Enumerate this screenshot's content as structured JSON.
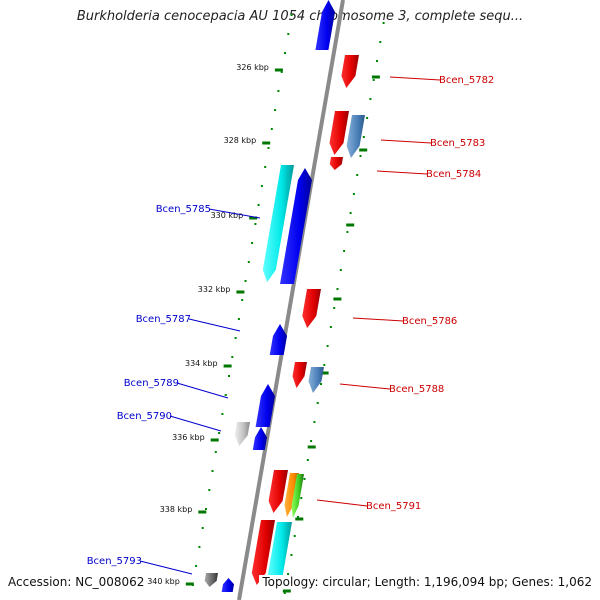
{
  "title": "Burkholderia cenocepacia AU 1054 chromosome 3, complete sequ...",
  "accession": "Accession: NC_008062",
  "topology": "Topology: circular; Length: 1,196,094 bp; Genes: 1,062",
  "colors": {
    "forward_label": "#0000cc",
    "reverse_label": "#cc0000",
    "backbone": "#8a8a8a",
    "tick": "#007700"
  },
  "ticks": [
    {
      "label": "326 kbp"
    },
    {
      "label": "328 kbp"
    },
    {
      "label": "330 kbp"
    },
    {
      "label": "332 kbp"
    },
    {
      "label": "334 kbp"
    },
    {
      "label": "336 kbp"
    },
    {
      "label": "338 kbp"
    },
    {
      "label": "340 kbp"
    }
  ],
  "gene_labels": [
    {
      "text": "Bcen_5782",
      "strand": "reverse"
    },
    {
      "text": "Bcen_5783",
      "strand": "reverse"
    },
    {
      "text": "Bcen_5784",
      "strand": "reverse"
    },
    {
      "text": "Bcen_5785",
      "strand": "forward"
    },
    {
      "text": "Bcen_5786",
      "strand": "reverse"
    },
    {
      "text": "Bcen_5787",
      "strand": "forward"
    },
    {
      "text": "Bcen_5788",
      "strand": "reverse"
    },
    {
      "text": "Bcen_5789",
      "strand": "forward"
    },
    {
      "text": "Bcen_5790",
      "strand": "forward"
    },
    {
      "text": "Bcen_5791",
      "strand": "reverse"
    },
    {
      "text": "Bcen_5793",
      "strand": "forward"
    }
  ]
}
